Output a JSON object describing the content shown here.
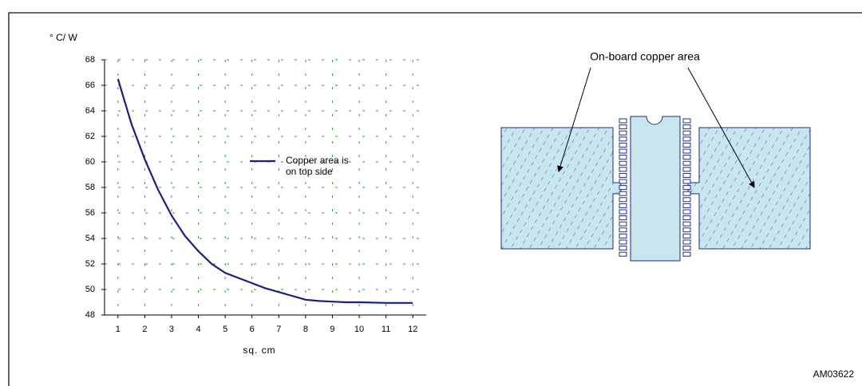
{
  "chart_data": {
    "type": "line",
    "y_label": "° C/ W",
    "x_label": "sq. cm",
    "x": [
      1,
      1.5,
      2,
      2.5,
      3,
      3.5,
      4,
      4.5,
      5,
      5.5,
      6,
      6.5,
      7,
      7.5,
      8,
      8.5,
      9,
      9.5,
      10,
      11,
      12
    ],
    "series": [
      {
        "name": "Copper area is on top side",
        "color": "#1c1c8c",
        "values": [
          66.5,
          63,
          60.2,
          57.8,
          55.8,
          54.2,
          53,
          52,
          51.3,
          50.9,
          50.5,
          50.1,
          49.8,
          49.5,
          49.2,
          49.1,
          49.05,
          49,
          49,
          48.95,
          48.95
        ]
      }
    ],
    "xlim": [
      0.5,
      12.5
    ],
    "ylim": [
      48,
      68
    ],
    "xticks": [
      1,
      2,
      3,
      4,
      5,
      6,
      7,
      8,
      9,
      10,
      11,
      12
    ],
    "yticks": [
      48,
      50,
      52,
      54,
      56,
      58,
      60,
      62,
      64,
      66,
      68
    ],
    "grid": true,
    "grid_color": "#2e9a2e",
    "legend": "right"
  },
  "diagram": {
    "label": "On-board copper area"
  },
  "figure_id": "AM03622"
}
